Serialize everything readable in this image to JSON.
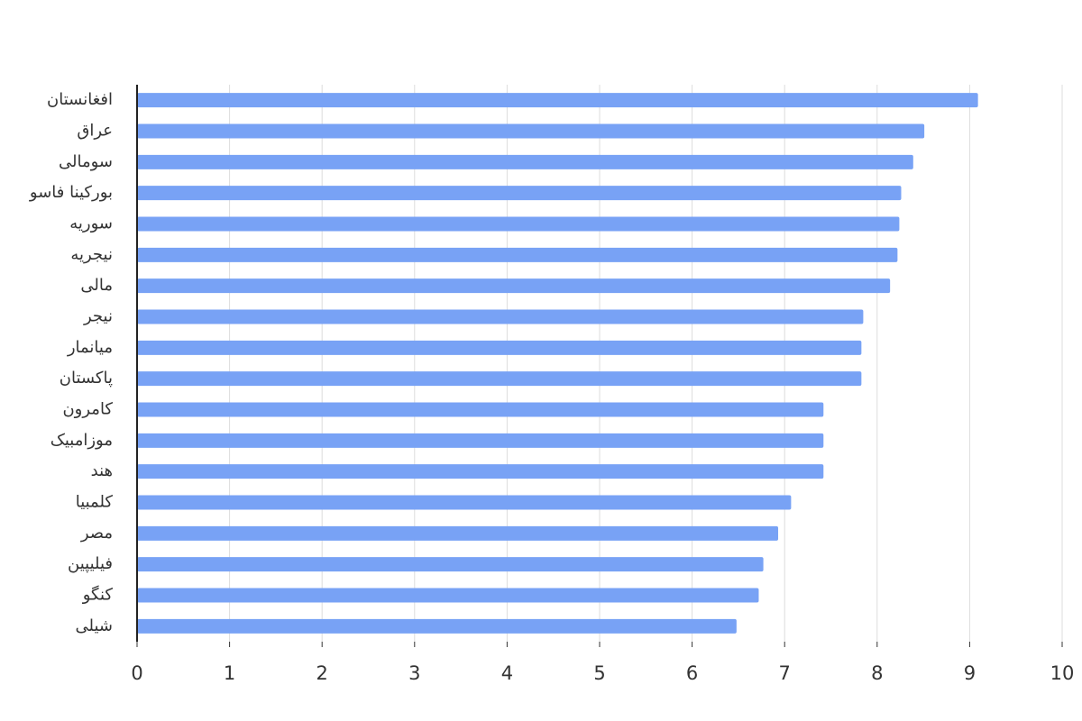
{
  "chart_data": {
    "type": "bar",
    "orientation": "horizontal",
    "categories": [
      "افغانستان",
      "عراق",
      "سومالی",
      "بورکینا فاسو",
      "سوریه",
      "نیجریه",
      "مالی",
      "نیجر",
      "میانمار",
      "پاکستان",
      "کامرون",
      "موزامبیک",
      "هند",
      "کلمبیا",
      "مصر",
      "فیلیپین",
      "کنگو",
      "شیلی"
    ],
    "values": [
      9.09,
      8.51,
      8.39,
      8.26,
      8.24,
      8.22,
      8.14,
      7.85,
      7.83,
      7.83,
      7.42,
      7.42,
      7.42,
      7.07,
      6.93,
      6.77,
      6.72,
      6.48
    ],
    "color": "#78a2f5",
    "xlim": [
      0,
      10
    ],
    "xticks": [
      0,
      1,
      2,
      3,
      4,
      5,
      6,
      7,
      8,
      9,
      10
    ],
    "grid": true
  }
}
